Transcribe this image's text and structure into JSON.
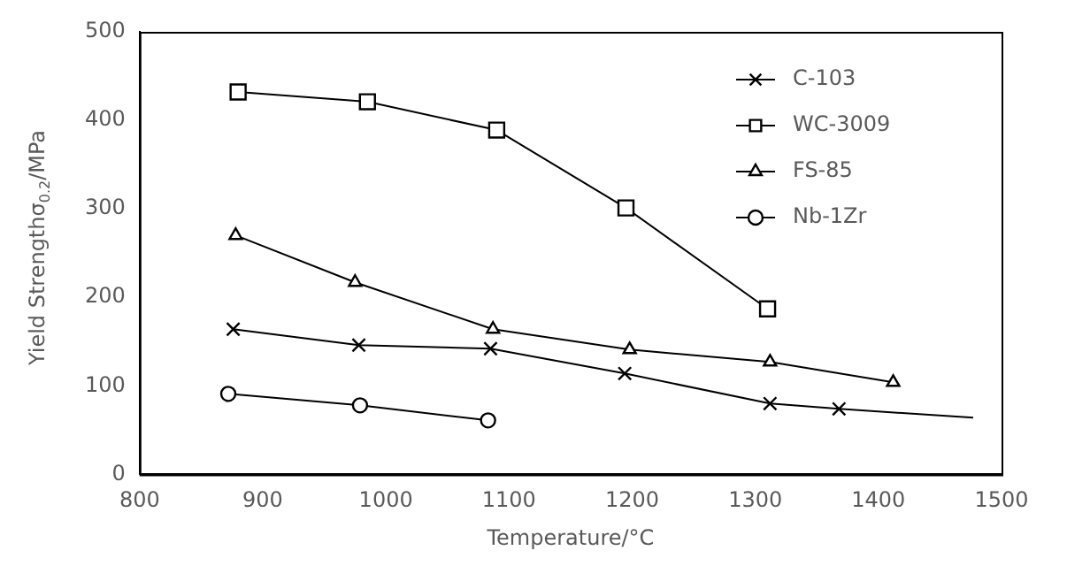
{
  "chart_data": {
    "type": "line",
    "xlabel": "Temperature/°C",
    "ylabel": "Yield Strengthσ$_{0.2}$/MPa",
    "xlim": [
      800,
      1500
    ],
    "xticks": [
      800,
      900,
      1000,
      1100,
      1200,
      1300,
      1400,
      1500
    ],
    "ylim": [
      0,
      500
    ],
    "yticks": [
      0,
      100,
      200,
      300,
      400,
      500
    ],
    "grid": false,
    "legend": "top right",
    "series": [
      {
        "name": "C-103",
        "color": "#000000",
        "marker": "cross",
        "x": [
          876,
          978,
          1085,
          1194,
          1312,
          1368
        ],
        "values": [
          164,
          146,
          142,
          114,
          80,
          74
        ]
      },
      {
        "name": "WC-3009",
        "color": "#000000",
        "marker": "square",
        "x": [
          880,
          985,
          1090,
          1195,
          1310
        ],
        "values": [
          432,
          421,
          389,
          301,
          187
        ]
      },
      {
        "name": "FS-85",
        "color": "#000000",
        "marker": "triangle",
        "x": [
          878,
          975,
          1087,
          1198,
          1312,
          1412
        ],
        "values": [
          270,
          217,
          164,
          141,
          127,
          104
        ]
      },
      {
        "name": "Nb-1Zr",
        "color": "#000000",
        "marker": "circle",
        "x": [
          872,
          979,
          1083
        ],
        "values": [
          91,
          78,
          61
        ]
      },
      {
        "color": "#000000",
        "marker": "none",
        "x": [
          1368,
          1477
        ],
        "values": [
          74,
          64
        ]
      }
    ]
  }
}
